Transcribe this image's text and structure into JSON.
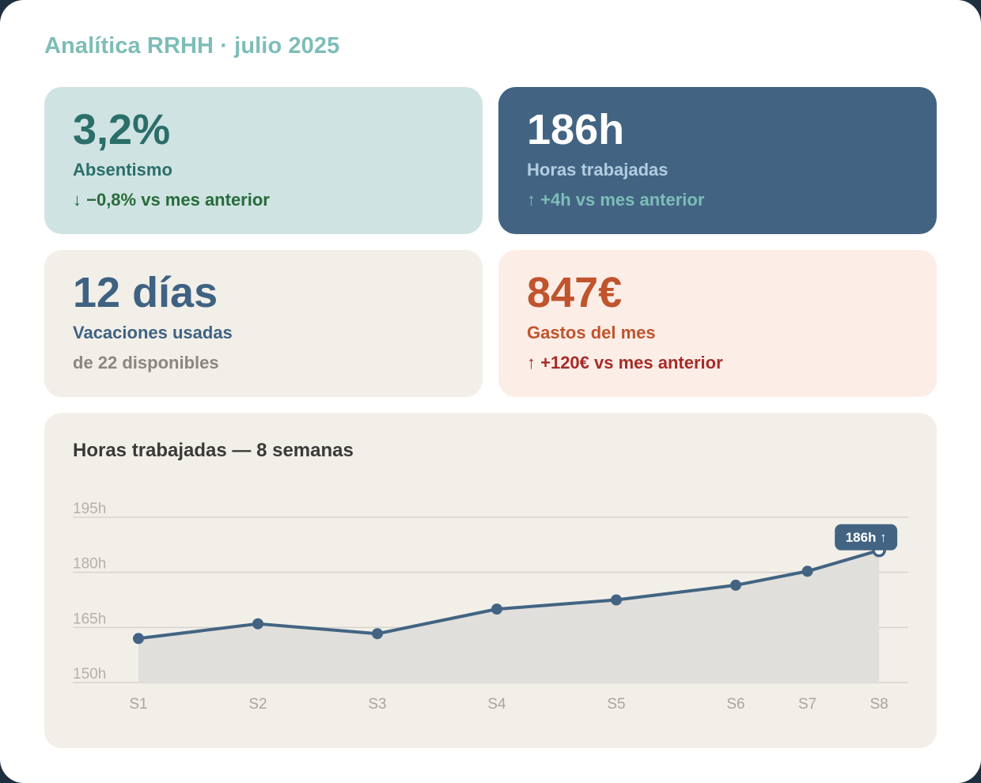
{
  "header": {
    "title": "Analítica RRHH · julio 2025"
  },
  "cards": {
    "absentismo": {
      "value": "3,2%",
      "label": "Absentismo",
      "delta": "↓ −0,8% vs mes anterior"
    },
    "horas": {
      "value": "186h",
      "label": "Horas trabajadas",
      "delta": "↑ +4h vs mes anterior"
    },
    "vacaciones": {
      "value": "12 días",
      "label": "Vacaciones usadas",
      "note": "de 22 disponibles"
    },
    "gastos": {
      "value": "847€",
      "label": "Gastos del mes",
      "delta": "↑ +120€ vs mes anterior"
    }
  },
  "colors": {
    "line": "#426482",
    "area": "#e0dfdc",
    "grid": "#d6d3cd",
    "callout": "#426482"
  },
  "chart_data": {
    "type": "area",
    "title": "Horas trabajadas — 8 semanas",
    "categories": [
      "S1",
      "S2",
      "S3",
      "S4",
      "S5",
      "S6",
      "S7",
      "S8"
    ],
    "x": [
      1,
      2,
      3,
      4,
      5,
      6,
      6.6,
      7.2
    ],
    "values": [
      162,
      166,
      163.3,
      170,
      172.5,
      176.5,
      180.3,
      186
    ],
    "yticks": [
      150,
      165,
      180,
      195
    ],
    "ytick_labels": [
      "150h",
      "165h",
      "180h",
      "195h"
    ],
    "ylim": [
      150,
      195
    ],
    "grid": true,
    "callout": {
      "text": "186h ↑",
      "category": "S8"
    }
  }
}
